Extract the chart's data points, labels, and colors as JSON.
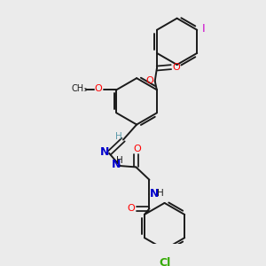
{
  "bg_color": "#ebebeb",
  "bond_color": "#1a1a1a",
  "O_color": "#ff0000",
  "N_color": "#0000cc",
  "Cl_color": "#33aa00",
  "I_color": "#cc00cc",
  "H_color": "#5b9aaa",
  "figsize": [
    3.0,
    3.0
  ],
  "dpi": 100,
  "xlim": [
    0,
    10
  ],
  "ylim": [
    0,
    10
  ]
}
